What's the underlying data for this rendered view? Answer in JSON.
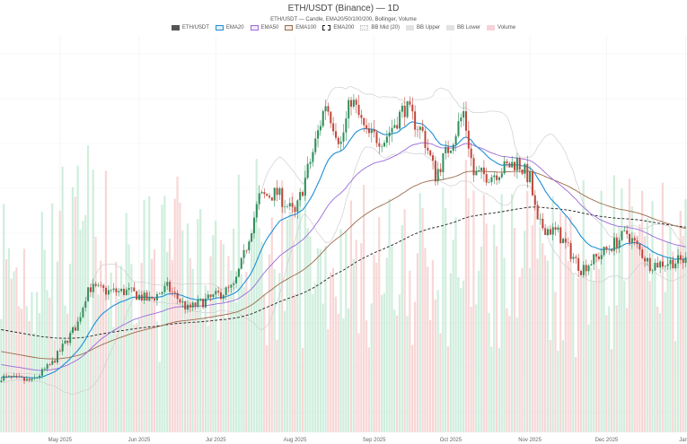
{
  "chart_data": {
    "type": "candlestick",
    "title": "ETH/USDT (Binance) — 1D",
    "subtitle": "ETH/USDT — Candle, EMA20/50/100/200, Bollinger, Volume",
    "legend": [
      {
        "name": "ETH/USDT",
        "color": "#555555",
        "style": "fill"
      },
      {
        "name": "EMA20",
        "color": "#1f8fd6",
        "style": "box"
      },
      {
        "name": "EMA50",
        "color": "#9a6ad8",
        "style": "box"
      },
      {
        "name": "EMA100",
        "color": "#9b6b4a",
        "style": "box"
      },
      {
        "name": "EMA200",
        "color": "#222222",
        "style": "dashed"
      },
      {
        "name": "BB Mid (20)",
        "color": "#cccccc",
        "style": "dotted"
      },
      {
        "name": "BB Upper",
        "color": "#cccccc",
        "style": "fill"
      },
      {
        "name": "BB Lower",
        "color": "#cccccc",
        "style": "fill"
      },
      {
        "name": "Volume",
        "color": "#f4c6cc",
        "style": "fill"
      }
    ],
    "legend_position": "top",
    "x_ticks": [
      "May 2025",
      "Jun 2025",
      "Jul 2025",
      "Aug 2025",
      "Sep 2025",
      "Oct 2025",
      "Nov 2025",
      "Dec 2025",
      "Jan 2"
    ],
    "x_range": [
      "2025-04-08",
      "2026-01-01"
    ],
    "y_axis_labels_shown": false,
    "grid": true,
    "colors": {
      "up": "#2f8f5b",
      "down": "#c0463c",
      "vol_up": "#bfe8d2",
      "vol_down": "#f6c9c9"
    },
    "approx_close_anchors": [
      [
        "2025-04-08",
        1650
      ],
      [
        "2025-04-20",
        1600
      ],
      [
        "2025-04-28",
        1810
      ],
      [
        "2025-05-08",
        2270
      ],
      [
        "2025-05-12",
        2680
      ],
      [
        "2025-05-20",
        2630
      ],
      [
        "2025-05-28",
        2630
      ],
      [
        "2025-06-05",
        2530
      ],
      [
        "2025-06-12",
        2680
      ],
      [
        "2025-06-20",
        2430
      ],
      [
        "2025-06-25",
        2500
      ],
      [
        "2025-07-01",
        2580
      ],
      [
        "2025-07-08",
        2680
      ],
      [
        "2025-07-12",
        3040
      ],
      [
        "2025-07-18",
        3710
      ],
      [
        "2025-07-25",
        3760
      ],
      [
        "2025-08-01",
        3510
      ],
      [
        "2025-08-08",
        4230
      ],
      [
        "2025-08-13",
        4800
      ],
      [
        "2025-08-19",
        4330
      ],
      [
        "2025-08-23",
        4850
      ],
      [
        "2025-08-29",
        4430
      ],
      [
        "2025-09-05",
        4380
      ],
      [
        "2025-09-13",
        4750
      ],
      [
        "2025-09-20",
        4450
      ],
      [
        "2025-09-25",
        3970
      ],
      [
        "2025-10-01",
        4330
      ],
      [
        "2025-10-06",
        4690
      ],
      [
        "2025-10-10",
        3970
      ],
      [
        "2025-10-17",
        3970
      ],
      [
        "2025-10-27",
        4125
      ],
      [
        "2025-11-01",
        3920
      ],
      [
        "2025-11-04",
        3400
      ],
      [
        "2025-11-12",
        3300
      ],
      [
        "2025-11-21",
        2890
      ],
      [
        "2025-11-28",
        3040
      ],
      [
        "2025-12-09",
        3300
      ],
      [
        "2025-12-18",
        2940
      ],
      [
        "2026-01-01",
        2990
      ]
    ]
  }
}
